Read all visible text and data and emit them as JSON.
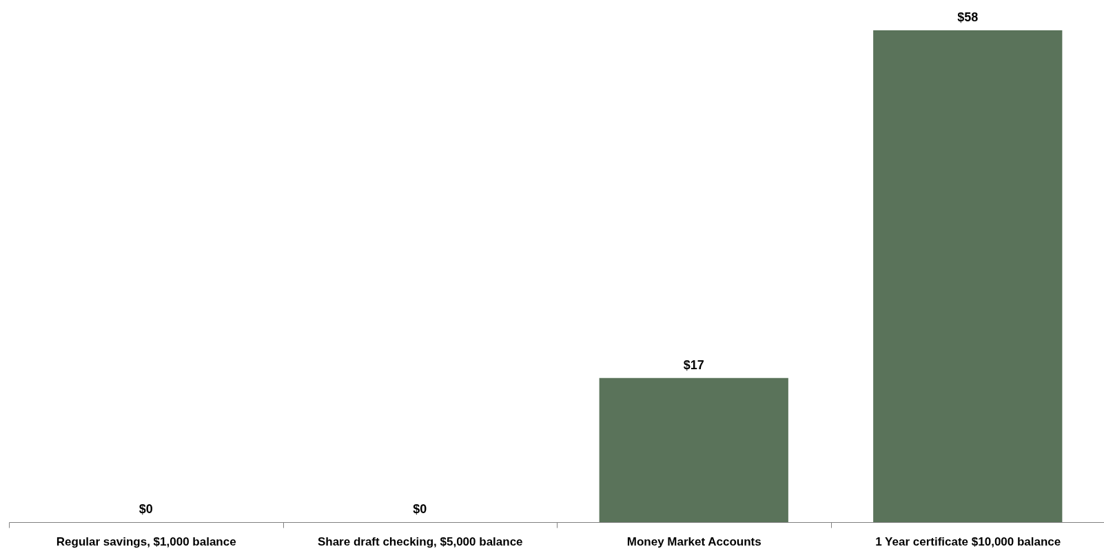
{
  "chart_data": {
    "type": "bar",
    "categories": [
      "Regular savings, $1,000 balance",
      "Share draft checking, $5,000 balance",
      "Money Market Accounts",
      "1 Year certificate $10,000 balance"
    ],
    "values": [
      0,
      0,
      17,
      58
    ],
    "value_labels": [
      "$0",
      "$0",
      "$17",
      "$58"
    ],
    "color": "#5a735a"
  }
}
